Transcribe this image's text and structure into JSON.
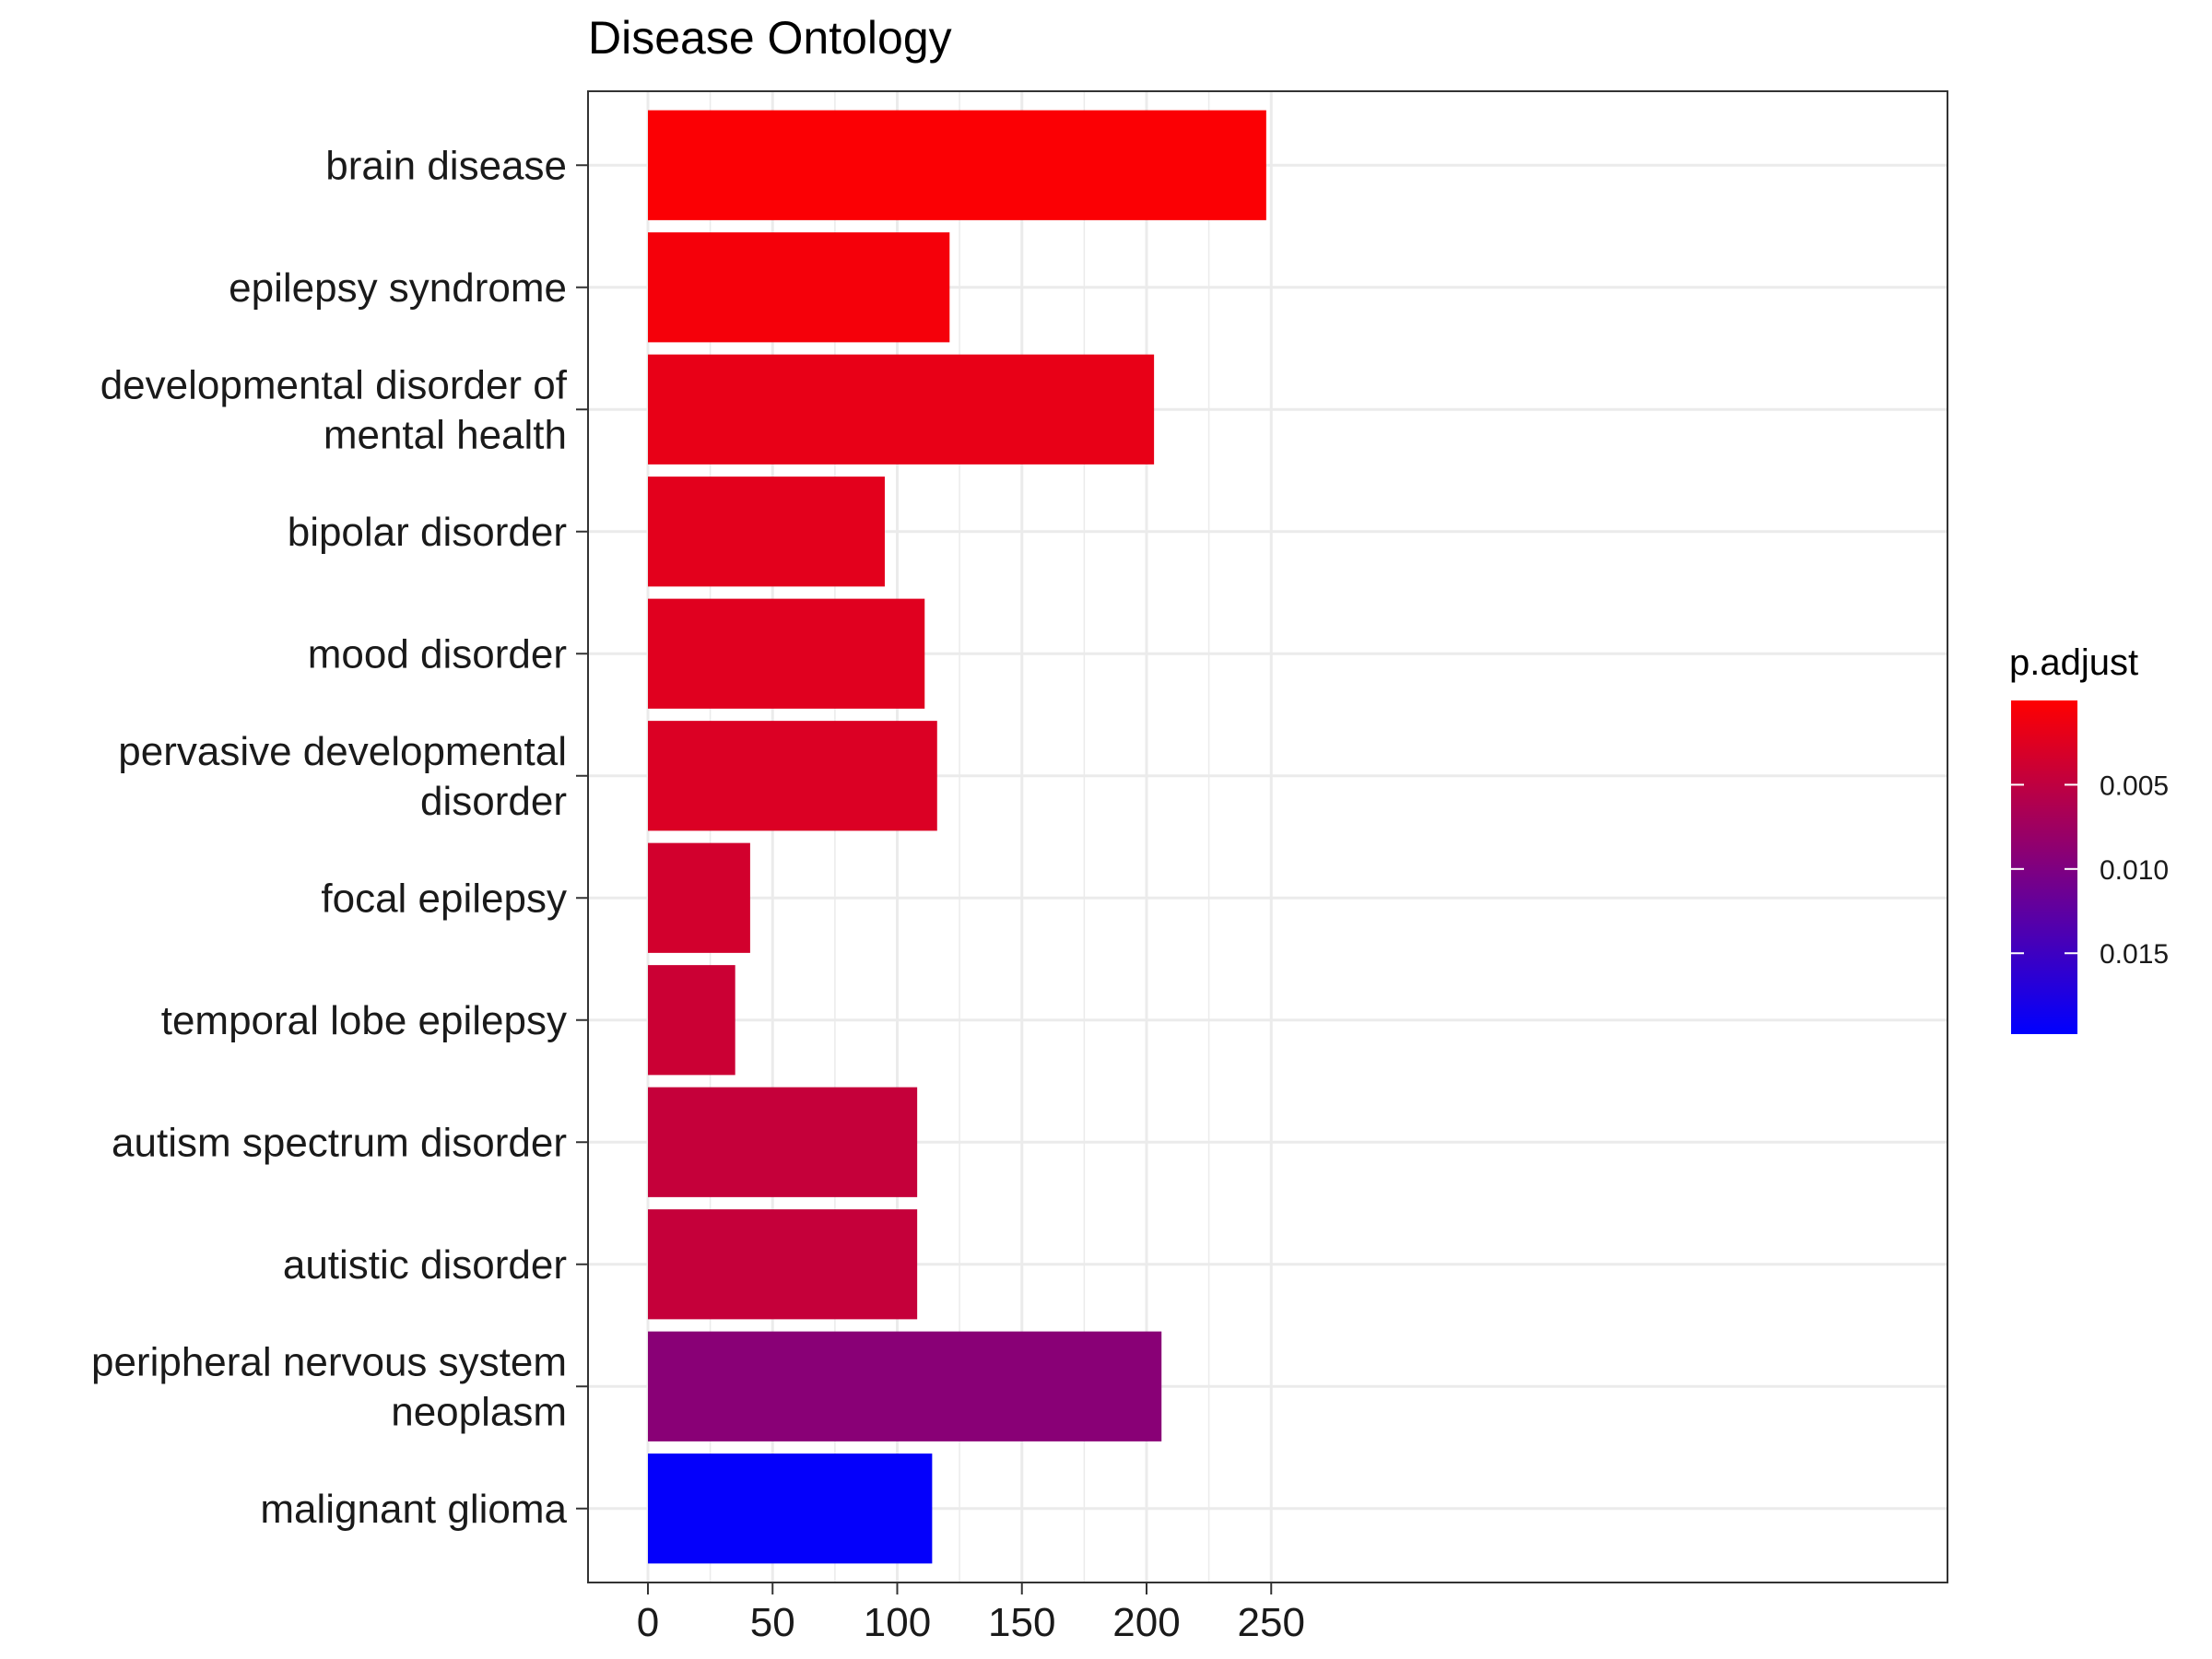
{
  "chart_data": {
    "type": "bar",
    "orientation": "horizontal",
    "title": "Disease Ontology",
    "xlabel": "",
    "ylabel": "",
    "xlim": [
      0,
      260
    ],
    "x_ticks": [
      0,
      50,
      100,
      150,
      200,
      250
    ],
    "grid": true,
    "legend_placement": "right",
    "categories": [
      [
        "brain disease"
      ],
      [
        "epilepsy syndrome"
      ],
      [
        "developmental disorder of",
        "mental health"
      ],
      [
        "bipolar disorder"
      ],
      [
        "mood disorder"
      ],
      [
        "pervasive developmental",
        "disorder"
      ],
      [
        "focal epilepsy"
      ],
      [
        "temporal lobe epilepsy"
      ],
      [
        "autism spectrum disorder"
      ],
      [
        "autistic disorder"
      ],
      [
        "peripheral nervous system",
        "neoplasm"
      ],
      [
        "malignant glioma"
      ]
    ],
    "values": [
      248,
      121,
      203,
      95,
      111,
      116,
      41,
      35,
      108,
      108,
      206,
      114
    ],
    "p_adjust": [
      0.0003,
      0.0008,
      0.0018,
      0.0022,
      0.0024,
      0.0028,
      0.0035,
      0.004,
      0.0045,
      0.0045,
      0.0092,
      0.0195
    ],
    "colorbar": {
      "title": "p.adjust",
      "range": [
        0.0,
        0.0198
      ],
      "ticks": [
        0.005,
        0.01,
        0.015
      ],
      "tick_labels": [
        "0.005",
        "0.010",
        "0.015"
      ],
      "low_color": "#ff0000",
      "high_color": "#0000ff"
    }
  }
}
